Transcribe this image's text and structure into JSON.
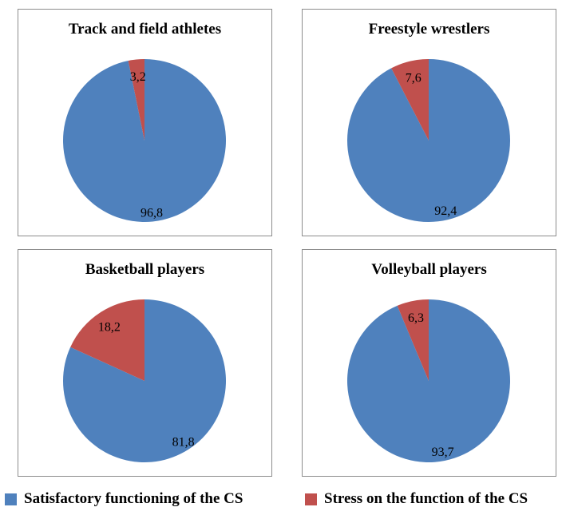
{
  "colors": {
    "satisfactory": "#4f81bd",
    "stress": "#c0504d"
  },
  "chart_data": [
    {
      "type": "pie",
      "title": "Track and field athletes",
      "categories": [
        "Satisfactory functioning of the CS",
        "Stress on the function of the CS"
      ],
      "values": [
        96.8,
        3.2
      ],
      "labels": [
        "96,8",
        "3,2"
      ]
    },
    {
      "type": "pie",
      "title": "Freestyle wrestlers",
      "categories": [
        "Satisfactory functioning of the CS",
        "Stress on the function of the CS"
      ],
      "values": [
        92.4,
        7.6
      ],
      "labels": [
        "92,4",
        "7,6"
      ]
    },
    {
      "type": "pie",
      "title": "Basketball players",
      "categories": [
        "Satisfactory functioning of the CS",
        "Stress on the function of the CS"
      ],
      "values": [
        81.8,
        18.2
      ],
      "labels": [
        "81,8",
        "18,2"
      ]
    },
    {
      "type": "pie",
      "title": "Volleyball players",
      "categories": [
        "Satisfactory functioning of the CS",
        "Stress on the function of the CS"
      ],
      "values": [
        93.7,
        6.3
      ],
      "labels": [
        "93,7",
        "6,3"
      ]
    }
  ],
  "legend": {
    "items": [
      "Satisfactory functioning of the CS",
      "Stress on the function of the CS"
    ]
  }
}
